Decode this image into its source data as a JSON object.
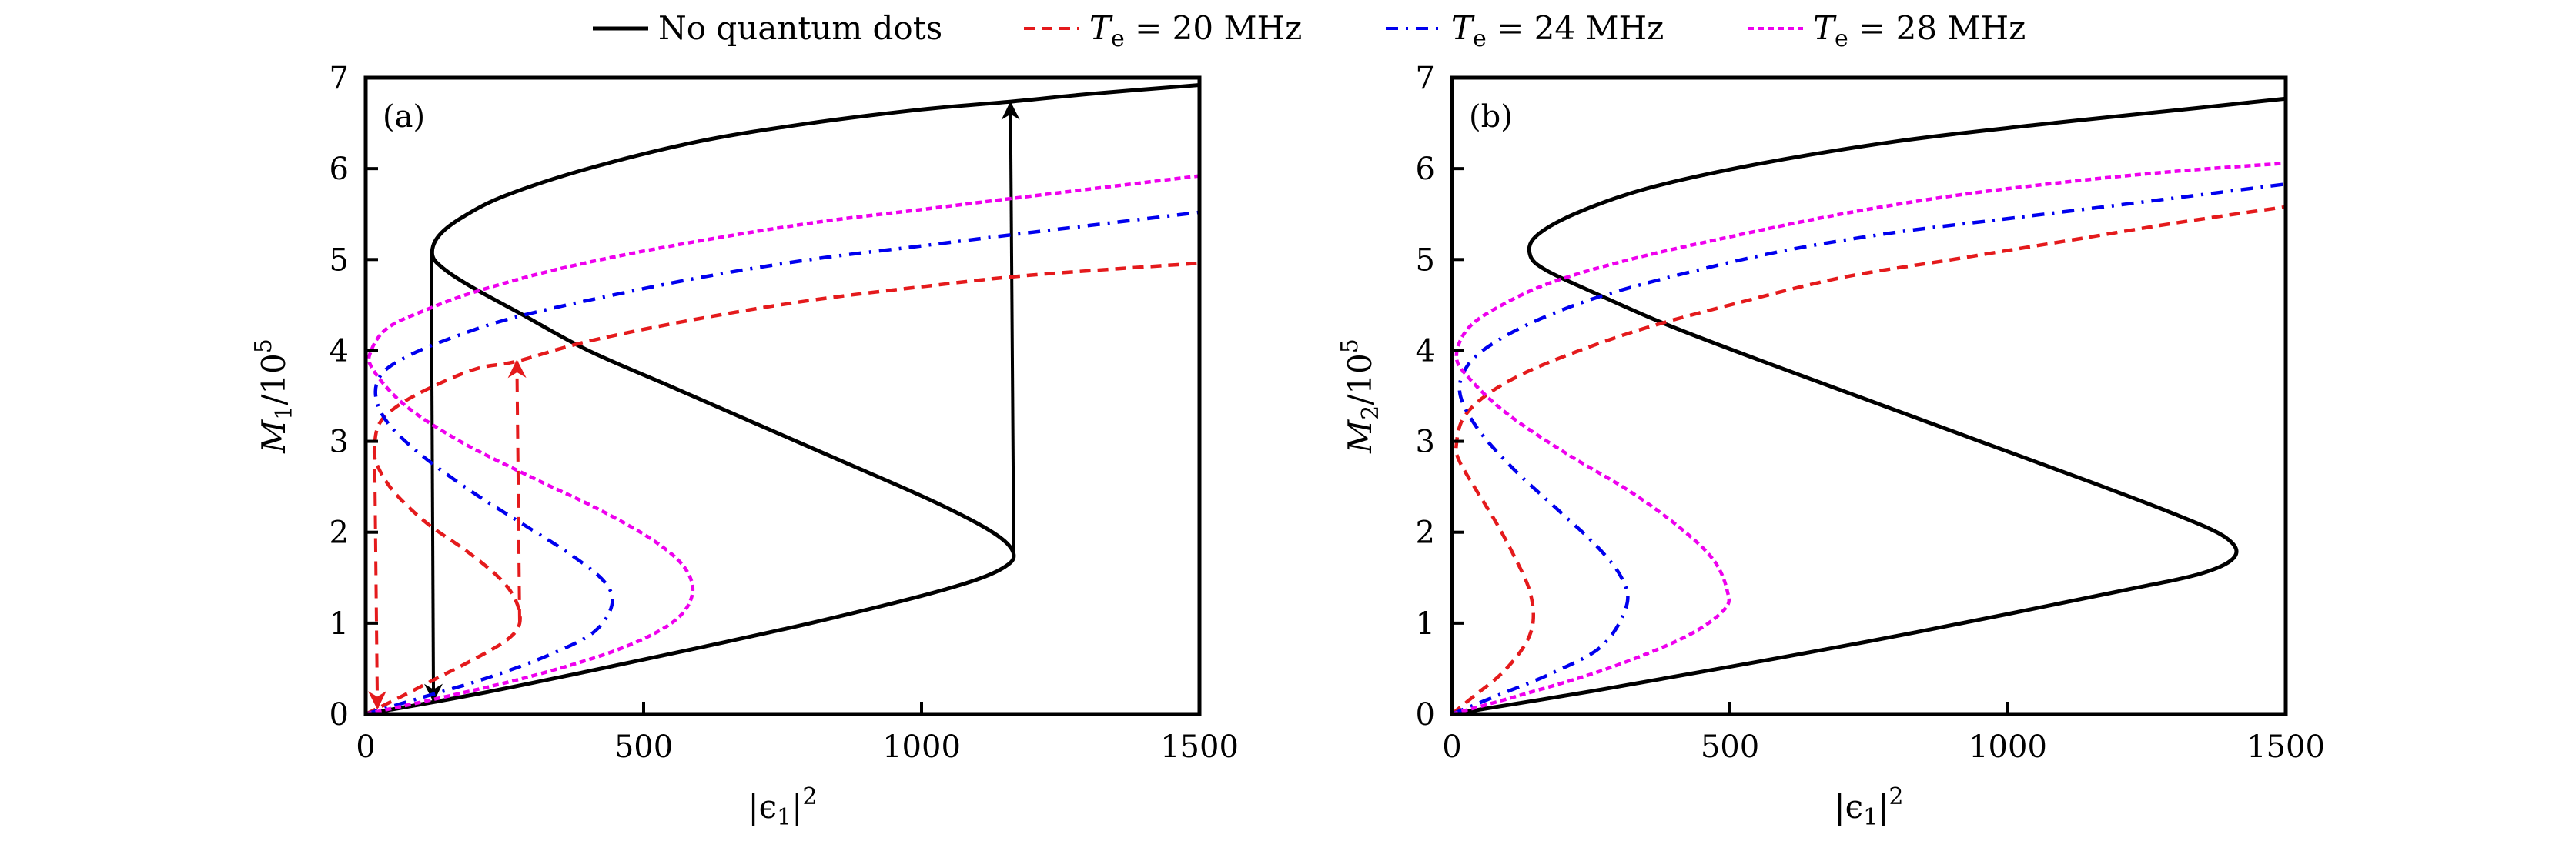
{
  "chart_data": {
    "type": "line",
    "legend": {
      "placement": "top-center",
      "entries": [
        {
          "key": "none",
          "label": "No quantum dots",
          "color": "#000000",
          "style": "solid"
        },
        {
          "key": "te20",
          "label_var": "T",
          "label_sub": "e",
          "label_rest": " = 20 MHz",
          "color": "#e41a1c",
          "style": "dashed"
        },
        {
          "key": "te24",
          "label_var": "T",
          "label_sub": "e",
          "label_rest": " = 24 MHz",
          "color": "#0000ee",
          "style": "dashdot"
        },
        {
          "key": "te28",
          "label_var": "T",
          "label_sub": "e",
          "label_rest": " = 28 MHz",
          "color": "#ee00ee",
          "style": "dotted"
        }
      ]
    },
    "panels": [
      {
        "id": "a",
        "tag": "(a)",
        "xlabel": "|ϵ1|²",
        "xlabel_parts": {
          "open": "|ϵ",
          "sub": "1",
          "close": "|",
          "sup": "2"
        },
        "ylabel_parts": {
          "var": "M",
          "sub": "1",
          "rest": "/10",
          "sup": "5"
        },
        "xlim": [
          0,
          1500
        ],
        "ylim": [
          0,
          7
        ],
        "xticks": [
          0,
          500,
          1000,
          1500
        ],
        "yticks": [
          0,
          1,
          2,
          3,
          4,
          5,
          6,
          7
        ],
        "series": [
          {
            "key": "none",
            "points": [
              [
                0,
                0
              ],
              [
                200,
                0.22
              ],
              [
                400,
                0.47
              ],
              [
                600,
                0.73
              ],
              [
                800,
                1.0
              ],
              [
                1000,
                1.3
              ],
              [
                1100,
                1.48
              ],
              [
                1150,
                1.62
              ],
              [
                1166,
                1.74
              ],
              [
                1150,
                1.9
              ],
              [
                1100,
                2.1
              ],
              [
                1000,
                2.4
              ],
              [
                850,
                2.8
              ],
              [
                700,
                3.2
              ],
              [
                550,
                3.6
              ],
              [
                400,
                4.0
              ],
              [
                280,
                4.4
              ],
              [
                190,
                4.7
              ],
              [
                140,
                4.9
              ],
              [
                120,
                5.05
              ],
              [
                130,
                5.25
              ],
              [
                170,
                5.45
              ],
              [
                250,
                5.7
              ],
              [
                400,
                6.0
              ],
              [
                600,
                6.3
              ],
              [
                800,
                6.5
              ],
              [
                1000,
                6.65
              ],
              [
                1166,
                6.74
              ],
              [
                1300,
                6.82
              ],
              [
                1500,
                6.92
              ]
            ]
          },
          {
            "key": "te20",
            "points": [
              [
                0,
                0
              ],
              [
                60,
                0.18
              ],
              [
                130,
                0.4
              ],
              [
                200,
                0.62
              ],
              [
                255,
                0.82
              ],
              [
                277,
                1.0
              ],
              [
                270,
                1.25
              ],
              [
                240,
                1.5
              ],
              [
                180,
                1.8
              ],
              [
                110,
                2.1
              ],
              [
                50,
                2.45
              ],
              [
                20,
                2.75
              ],
              [
                16,
                2.95
              ],
              [
                25,
                3.2
              ],
              [
                60,
                3.4
              ],
              [
                120,
                3.6
              ],
              [
                200,
                3.8
              ],
              [
                272,
                3.88
              ],
              [
                400,
                4.1
              ],
              [
                600,
                4.35
              ],
              [
                800,
                4.55
              ],
              [
                1000,
                4.7
              ],
              [
                1200,
                4.83
              ],
              [
                1500,
                4.96
              ]
            ]
          },
          {
            "key": "te24",
            "points": [
              [
                0,
                0
              ],
              [
                100,
                0.18
              ],
              [
                220,
                0.4
              ],
              [
                330,
                0.65
              ],
              [
                410,
                0.9
              ],
              [
                443,
                1.2
              ],
              [
                430,
                1.45
              ],
              [
                370,
                1.75
              ],
              [
                280,
                2.1
              ],
              [
                190,
                2.45
              ],
              [
                100,
                2.85
              ],
              [
                40,
                3.2
              ],
              [
                18,
                3.5
              ],
              [
                30,
                3.75
              ],
              [
                80,
                3.95
              ],
              [
                160,
                4.15
              ],
              [
                260,
                4.35
              ],
              [
                400,
                4.55
              ],
              [
                600,
                4.8
              ],
              [
                800,
                5.0
              ],
              [
                1000,
                5.15
              ],
              [
                1200,
                5.3
              ],
              [
                1500,
                5.52
              ]
            ]
          },
          {
            "key": "te28",
            "points": [
              [
                0,
                0
              ],
              [
                150,
                0.2
              ],
              [
                300,
                0.42
              ],
              [
                450,
                0.7
              ],
              [
                550,
                1.0
              ],
              [
                587,
                1.3
              ],
              [
                575,
                1.6
              ],
              [
                520,
                1.9
              ],
              [
                420,
                2.25
              ],
              [
                300,
                2.6
              ],
              [
                170,
                3.0
              ],
              [
                70,
                3.4
              ],
              [
                12,
                3.8
              ],
              [
                10,
                4.0
              ],
              [
                40,
                4.25
              ],
              [
                110,
                4.45
              ],
              [
                200,
                4.65
              ],
              [
                350,
                4.9
              ],
              [
                550,
                5.15
              ],
              [
                800,
                5.4
              ],
              [
                1000,
                5.55
              ],
              [
                1200,
                5.7
              ],
              [
                1500,
                5.92
              ]
            ]
          }
        ],
        "arrows": [
          {
            "color": "#000000",
            "style": "solid",
            "from": [
              118,
              5.05
            ],
            "to": [
              122,
              0.15
            ]
          },
          {
            "color": "#000000",
            "style": "solid",
            "from": [
              1166,
              1.74
            ],
            "to": [
              1160,
              6.72
            ]
          },
          {
            "color": "#e41a1c",
            "style": "dashed",
            "from": [
              16,
              2.95
            ],
            "to": [
              21,
              0.07
            ]
          },
          {
            "color": "#e41a1c",
            "style": "dashed",
            "from": [
              277,
              1.0
            ],
            "to": [
              272,
              3.88
            ]
          }
        ]
      },
      {
        "id": "b",
        "tag": "(b)",
        "xlabel": "|ϵ1|²",
        "xlabel_parts": {
          "open": "|ϵ",
          "sub": "1",
          "close": "|",
          "sup": "2"
        },
        "ylabel_parts": {
          "var": "M",
          "sub": "2",
          "rest": "/10",
          "sup": "5"
        },
        "xlim": [
          0,
          1500
        ],
        "ylim": [
          0,
          7
        ],
        "xticks": [
          0,
          500,
          1000,
          1500
        ],
        "yticks": [
          0,
          1,
          2,
          3,
          4,
          5,
          6,
          7
        ],
        "series": [
          {
            "key": "none",
            "points": [
              [
                0,
                0
              ],
              [
                250,
                0.25
              ],
              [
                500,
                0.52
              ],
              [
                750,
                0.8
              ],
              [
                1000,
                1.1
              ],
              [
                1200,
                1.35
              ],
              [
                1350,
                1.55
              ],
              [
                1409,
                1.74
              ],
              [
                1390,
                1.95
              ],
              [
                1300,
                2.2
              ],
              [
                1150,
                2.55
              ],
              [
                950,
                3.0
              ],
              [
                750,
                3.45
              ],
              [
                550,
                3.9
              ],
              [
                380,
                4.3
              ],
              [
                250,
                4.65
              ],
              [
                170,
                4.88
              ],
              [
                141,
                5.04
              ],
              [
                150,
                5.25
              ],
              [
                220,
                5.5
              ],
              [
                350,
                5.78
              ],
              [
                550,
                6.05
              ],
              [
                800,
                6.3
              ],
              [
                1050,
                6.48
              ],
              [
                1300,
                6.64
              ],
              [
                1500,
                6.77
              ]
            ]
          },
          {
            "key": "te20",
            "points": [
              [
                0,
                0
              ],
              [
                40,
                0.2
              ],
              [
                90,
                0.45
              ],
              [
                130,
                0.75
              ],
              [
                146,
                1.02
              ],
              [
                140,
                1.35
              ],
              [
                115,
                1.7
              ],
              [
                80,
                2.1
              ],
              [
                40,
                2.5
              ],
              [
                12,
                2.8
              ],
              [
                8,
                2.97
              ],
              [
                20,
                3.25
              ],
              [
                60,
                3.5
              ],
              [
                130,
                3.75
              ],
              [
                230,
                4.0
              ],
              [
                350,
                4.25
              ],
              [
                500,
                4.5
              ],
              [
                700,
                4.8
              ],
              [
                900,
                5.0
              ],
              [
                1100,
                5.2
              ],
              [
                1300,
                5.4
              ],
              [
                1500,
                5.58
              ]
            ]
          },
          {
            "key": "te24",
            "points": [
              [
                0,
                0
              ],
              [
                80,
                0.2
              ],
              [
                180,
                0.45
              ],
              [
                270,
                0.75
              ],
              [
                314,
                1.19
              ],
              [
                305,
                1.5
              ],
              [
                260,
                1.85
              ],
              [
                190,
                2.25
              ],
              [
                110,
                2.7
              ],
              [
                45,
                3.15
              ],
              [
                14,
                3.54
              ],
              [
                30,
                3.85
              ],
              [
                80,
                4.1
              ],
              [
                160,
                4.35
              ],
              [
                270,
                4.6
              ],
              [
                420,
                4.85
              ],
              [
                600,
                5.1
              ],
              [
                800,
                5.3
              ],
              [
                1000,
                5.45
              ],
              [
                1200,
                5.6
              ],
              [
                1500,
                5.83
              ]
            ]
          },
          {
            "key": "te28",
            "points": [
              [
                0,
                0
              ],
              [
                130,
                0.22
              ],
              [
                280,
                0.5
              ],
              [
                420,
                0.85
              ],
              [
                490,
                1.15
              ],
              [
                495,
                1.36
              ],
              [
                470,
                1.7
              ],
              [
                410,
                2.05
              ],
              [
                320,
                2.45
              ],
              [
                210,
                2.85
              ],
              [
                100,
                3.3
              ],
              [
                30,
                3.7
              ],
              [
                8,
                3.94
              ],
              [
                30,
                4.25
              ],
              [
                90,
                4.5
              ],
              [
                180,
                4.75
              ],
              [
                320,
                5.0
              ],
              [
                500,
                5.25
              ],
              [
                700,
                5.5
              ],
              [
                900,
                5.7
              ],
              [
                1100,
                5.85
              ],
              [
                1300,
                5.97
              ],
              [
                1500,
                6.06
              ]
            ]
          }
        ],
        "arrows": []
      }
    ]
  }
}
